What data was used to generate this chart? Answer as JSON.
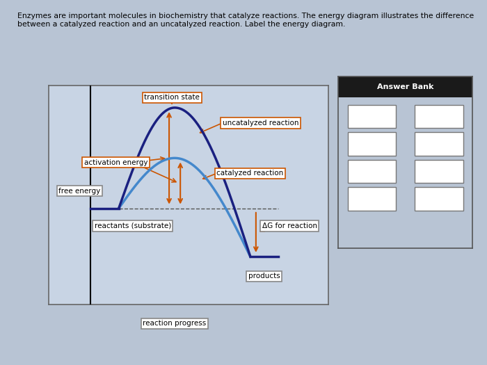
{
  "title_text": "Enzymes are important molecules in biochemistry that catalyze reactions. The energy diagram illustrates the difference\nbetween a catalyzed reaction and an uncatalyzed reaction. Label the energy diagram.",
  "bg_color": "#b8c4d4",
  "plot_bg_color": "#c8d4e4",
  "outer_bg": "#8a9ab0",
  "uncatalyzed_color": "#1a2080",
  "catalyzed_color": "#4488cc",
  "arrow_color": "#cc5500",
  "dashed_color": "#555555",
  "box_face": "#ffffff",
  "box_edge_orange": "#cc5500",
  "box_edge_gray": "#888888",
  "answer_bank_header": "#1a1a1a",
  "labels": {
    "transition_state": "transition state",
    "uncatalyzed": "uncatalyzed reaction",
    "catalyzed": "catalyzed reaction",
    "activation_energy": "activation energy",
    "free_energy": "free energy",
    "reactants": "reactants (substrate)",
    "products": "products",
    "reaction_progress": "reaction progress",
    "delta_g": "ΔG for reaction",
    "answer_bank": "Answer Bank"
  }
}
